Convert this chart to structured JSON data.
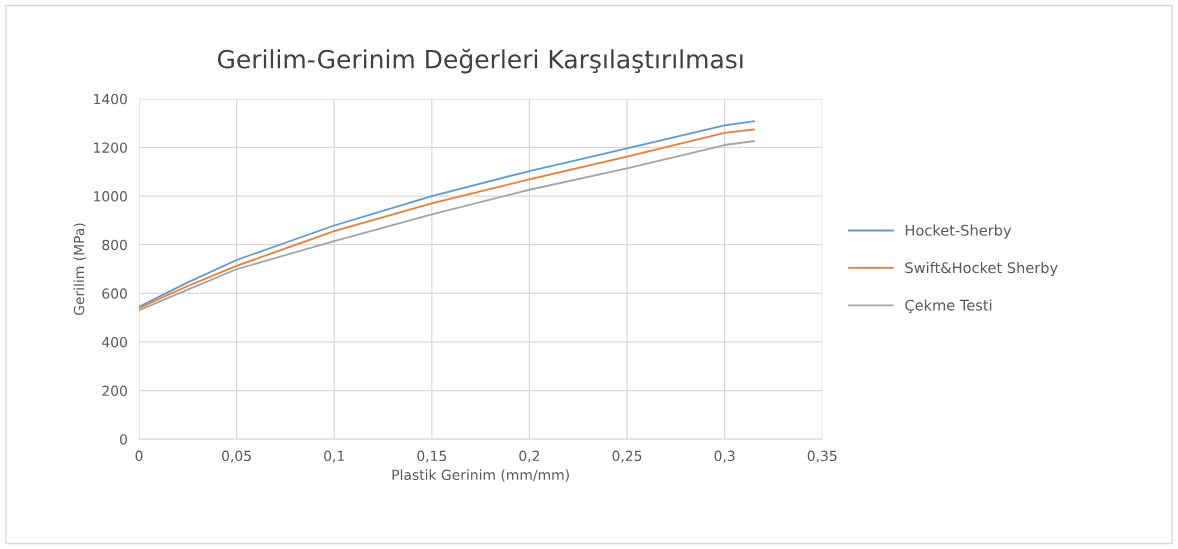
{
  "chart_data": {
    "type": "line",
    "title": "Gerilim-Gerinim Değerleri Karşılaştırılması",
    "xlabel": "Plastik Gerinim (mm/mm)",
    "ylabel": "Gerilim (MPa)",
    "x": [
      0,
      0.025,
      0.05,
      0.1,
      0.15,
      0.2,
      0.25,
      0.3,
      0.315
    ],
    "series": [
      {
        "name": "Hocket-Sherby",
        "color": "#5b9bd5",
        "values": [
          545,
          645,
          737,
          879,
          1000,
          1103,
          1196,
          1291,
          1308
        ]
      },
      {
        "name": "Swift&Hocket Sherby",
        "color": "#ed7d31",
        "values": [
          540,
          630,
          713,
          856,
          970,
          1069,
          1162,
          1260,
          1274
        ]
      },
      {
        "name": "Çekme Testi",
        "color": "#a5a5a5",
        "values": [
          530,
          615,
          699,
          815,
          925,
          1026,
          1114,
          1210,
          1226
        ]
      }
    ],
    "xlim": [
      0,
      0.35
    ],
    "ylim": [
      0,
      1400
    ],
    "xticks": [
      0,
      {
        "value": 0.05,
        "label": "0,05"
      },
      {
        "value": 0.1,
        "label": "0,1"
      },
      {
        "value": 0.15,
        "label": "0,15"
      },
      {
        "value": 0.2,
        "label": "0,2"
      },
      {
        "value": 0.25,
        "label": "0,25"
      },
      {
        "value": 0.3,
        "label": "0,3"
      },
      {
        "value": 0.35,
        "label": "0,35"
      }
    ],
    "yticks": [
      0,
      200,
      400,
      600,
      800,
      1000,
      1200,
      1400
    ],
    "grid": true,
    "legend": "right",
    "marker": "none",
    "line_style": "solid"
  }
}
